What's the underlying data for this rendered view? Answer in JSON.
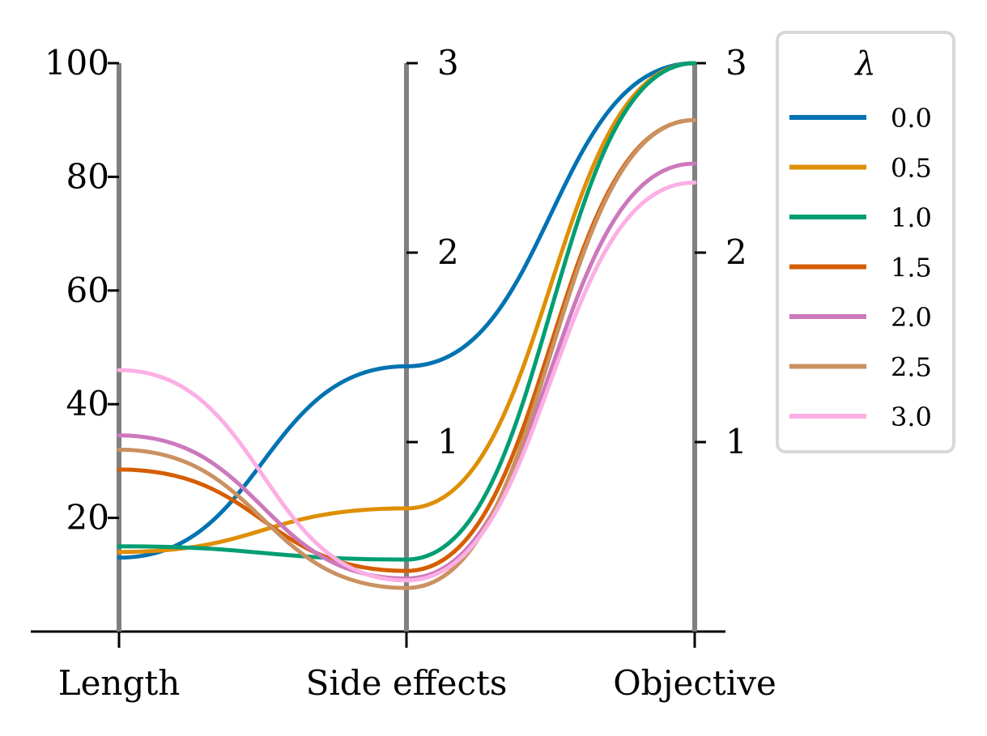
{
  "chart_data": {
    "type": "line",
    "subtype": "parallel-coordinates",
    "categories": [
      "Length",
      "Side effects",
      "Objective"
    ],
    "axes": [
      {
        "name": "Length",
        "range": [
          0,
          100
        ],
        "ticks": [
          20,
          40,
          60,
          80,
          100
        ]
      },
      {
        "name": "Side effects",
        "range": [
          0,
          3
        ],
        "ticks": [
          1,
          2,
          3
        ]
      },
      {
        "name": "Objective",
        "range": [
          0,
          3
        ],
        "ticks": [
          1,
          2,
          3
        ]
      }
    ],
    "legend": {
      "title": "λ",
      "placement": "right"
    },
    "series": [
      {
        "name": "0.0",
        "color": "#0173b2",
        "values": [
          13,
          1.4,
          3.0
        ]
      },
      {
        "name": "0.5",
        "color": "#de8f05",
        "values": [
          14,
          0.65,
          3.0
        ]
      },
      {
        "name": "1.0",
        "color": "#029e73",
        "values": [
          15,
          0.38,
          3.0
        ]
      },
      {
        "name": "1.5",
        "color": "#d55e00",
        "values": [
          28.5,
          0.32,
          2.7
        ]
      },
      {
        "name": "2.0",
        "color": "#cc78bc",
        "values": [
          34.5,
          0.28,
          2.47
        ]
      },
      {
        "name": "2.5",
        "color": "#ca9161",
        "values": [
          32,
          0.23,
          2.7
        ]
      },
      {
        "name": "3.0",
        "color": "#fbafe4",
        "values": [
          46,
          0.27,
          2.37
        ]
      }
    ]
  }
}
